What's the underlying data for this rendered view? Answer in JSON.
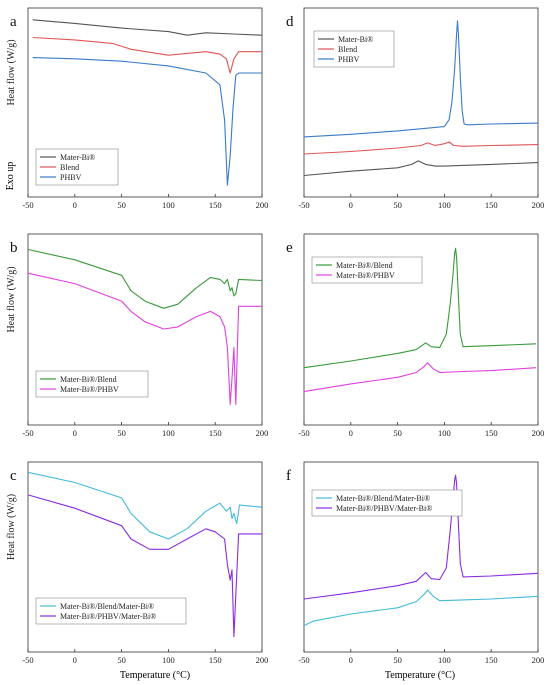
{
  "figure": {
    "xlabel_bottom_left": "Temperature (°C)",
    "xlabel_bottom_right": "Temperature (°C)",
    "exo_label": "Exo up"
  },
  "chart_data": [
    {
      "panel": "a",
      "type": "line",
      "ylabel": "Heat flow (W/g)",
      "xlim": [
        -50,
        200
      ],
      "xticks": [
        -50,
        0,
        50,
        100,
        150,
        200
      ],
      "yticks_shown": false,
      "legend_position": "bottom-left",
      "series": [
        {
          "name": "Mater-Bi®",
          "color": "#555555",
          "x": [
            -45,
            0,
            50,
            100,
            120,
            140,
            170,
            200
          ],
          "y": [
            0.95,
            0.92,
            0.88,
            0.85,
            0.82,
            0.84,
            0.83,
            0.82
          ]
        },
        {
          "name": "Blend",
          "color": "#e05555",
          "x": [
            -45,
            0,
            40,
            60,
            100,
            140,
            155,
            162,
            166,
            170,
            175,
            200
          ],
          "y": [
            0.8,
            0.78,
            0.75,
            0.7,
            0.65,
            0.68,
            0.66,
            0.62,
            0.5,
            0.62,
            0.68,
            0.68
          ]
        },
        {
          "name": "PHBV",
          "color": "#3a7ac8",
          "x": [
            -45,
            0,
            50,
            100,
            140,
            155,
            160,
            163,
            166,
            169,
            172,
            175,
            200
          ],
          "y": [
            0.63,
            0.62,
            0.6,
            0.56,
            0.5,
            0.4,
            0.1,
            -0.45,
            -0.2,
            0.2,
            0.48,
            0.5,
            0.5
          ]
        }
      ]
    },
    {
      "panel": "b",
      "type": "line",
      "ylabel": "Heat flow (W/g)",
      "xlim": [
        -50,
        200
      ],
      "xticks": [
        -50,
        0,
        50,
        100,
        150,
        200
      ],
      "yticks_shown": false,
      "legend_position": "bottom-left",
      "series": [
        {
          "name": "Mater-Bi®/Blend",
          "color": "#3a9a3a",
          "x": [
            -50,
            0,
            50,
            60,
            75,
            95,
            110,
            130,
            145,
            155,
            160,
            163,
            166,
            168,
            170,
            172,
            175,
            200
          ],
          "y": [
            0.95,
            0.85,
            0.7,
            0.55,
            0.45,
            0.38,
            0.42,
            0.58,
            0.68,
            0.66,
            0.62,
            0.66,
            0.55,
            0.58,
            0.5,
            0.52,
            0.66,
            0.65
          ]
        },
        {
          "name": "Mater-Bi®/PHBV",
          "color": "#e040e0",
          "x": [
            -50,
            0,
            50,
            60,
            75,
            95,
            110,
            130,
            145,
            155,
            160,
            163,
            166,
            168,
            170,
            172,
            175,
            200
          ],
          "y": [
            0.72,
            0.62,
            0.45,
            0.35,
            0.25,
            0.18,
            0.2,
            0.3,
            0.35,
            0.3,
            0.2,
            0.0,
            -0.55,
            -0.3,
            0.0,
            -0.55,
            0.4,
            0.4
          ]
        }
      ]
    },
    {
      "panel": "c",
      "type": "line",
      "ylabel": "Heat flow (W/g)",
      "xlim": [
        -50,
        200
      ],
      "xticks": [
        -50,
        0,
        50,
        100,
        150,
        200
      ],
      "yticks_shown": false,
      "legend_position": "bottom-left",
      "series": [
        {
          "name": "Mater-Bi®/Blend/Mater-Bi®",
          "color": "#44bbd8",
          "x": [
            -50,
            0,
            50,
            60,
            80,
            100,
            120,
            140,
            155,
            162,
            166,
            168,
            170,
            173,
            176,
            200
          ],
          "y": [
            1.0,
            0.9,
            0.75,
            0.6,
            0.42,
            0.35,
            0.45,
            0.62,
            0.7,
            0.62,
            0.66,
            0.55,
            0.6,
            0.5,
            0.68,
            0.66
          ]
        },
        {
          "name": "Mater-Bi®/PHBV/Mater-Bi®",
          "color": "#8a2be2",
          "x": [
            -50,
            0,
            50,
            60,
            80,
            100,
            120,
            140,
            150,
            160,
            163,
            166,
            168,
            170,
            172,
            175,
            200
          ],
          "y": [
            0.78,
            0.65,
            0.48,
            0.35,
            0.25,
            0.25,
            0.35,
            0.45,
            0.42,
            0.35,
            0.1,
            -0.05,
            0.05,
            -0.6,
            -0.2,
            0.4,
            0.4
          ]
        }
      ]
    },
    {
      "panel": "d",
      "type": "line",
      "ylabel": "",
      "xlim": [
        -50,
        200
      ],
      "xticks": [
        -50,
        0,
        50,
        100,
        150,
        200
      ],
      "yticks_shown": false,
      "legend_position": "top-left",
      "series": [
        {
          "name": "Mater-Bi®",
          "color": "#555555",
          "x": [
            -50,
            0,
            50,
            65,
            72,
            80,
            90,
            100,
            150,
            200
          ],
          "y": [
            -0.35,
            -0.3,
            -0.26,
            -0.22,
            -0.18,
            -0.22,
            -0.24,
            -0.24,
            -0.22,
            -0.2
          ]
        },
        {
          "name": "Blend",
          "color": "#e05555",
          "x": [
            -50,
            0,
            50,
            75,
            82,
            90,
            100,
            105,
            110,
            120,
            150,
            200
          ],
          "y": [
            -0.1,
            -0.07,
            -0.03,
            0.0,
            0.03,
            0.0,
            0.02,
            0.04,
            0.0,
            -0.01,
            0.0,
            0.01
          ]
        },
        {
          "name": "PHBV",
          "color": "#3a7ac8",
          "x": [
            -50,
            0,
            50,
            100,
            105,
            108,
            111,
            113,
            114,
            115,
            117,
            119,
            121,
            125,
            150,
            200
          ],
          "y": [
            0.1,
            0.13,
            0.17,
            0.22,
            0.3,
            0.5,
            0.9,
            1.3,
            1.45,
            1.3,
            0.8,
            0.4,
            0.25,
            0.24,
            0.25,
            0.26
          ]
        }
      ]
    },
    {
      "panel": "e",
      "type": "line",
      "ylabel": "",
      "xlim": [
        -50,
        200
      ],
      "xticks": [
        -50,
        0,
        50,
        100,
        150,
        200
      ],
      "yticks_shown": false,
      "legend_position": "top-left",
      "series": [
        {
          "name": "Mater-Bi®/Blend",
          "color": "#3a9a3a",
          "x": [
            -50,
            0,
            50,
            70,
            77,
            80,
            86,
            95,
            102,
            106,
            109,
            111,
            112,
            113,
            115,
            117,
            120,
            150,
            198
          ],
          "y": [
            0.05,
            0.12,
            0.2,
            0.24,
            0.29,
            0.31,
            0.27,
            0.26,
            0.4,
            0.7,
            1.0,
            1.25,
            1.3,
            1.2,
            0.8,
            0.4,
            0.27,
            0.28,
            0.3
          ]
        },
        {
          "name": "Mater-Bi®/PHBV",
          "color": "#e040e0",
          "x": [
            -50,
            0,
            50,
            70,
            78,
            82,
            88,
            95,
            120,
            150,
            198
          ],
          "y": [
            -0.2,
            -0.12,
            -0.05,
            0.0,
            0.06,
            0.1,
            0.04,
            0.0,
            0.01,
            0.02,
            0.05
          ]
        }
      ]
    },
    {
      "panel": "f",
      "type": "line",
      "ylabel": "",
      "xlim": [
        -50,
        200
      ],
      "xticks": [
        -50,
        0,
        50,
        100,
        150,
        200
      ],
      "yticks_shown": false,
      "legend_position": "top-left",
      "series": [
        {
          "name": "Mater-Bi®/Blend/Mater-Bi®",
          "color": "#44bbd8",
          "x": [
            -50,
            -40,
            0,
            50,
            70,
            78,
            82,
            88,
            95,
            120,
            150,
            200
          ],
          "y": [
            -0.25,
            -0.2,
            -0.12,
            -0.05,
            0.02,
            0.1,
            0.15,
            0.08,
            0.03,
            0.04,
            0.05,
            0.08
          ]
        },
        {
          "name": "Mater-Bi®/PHBV/Mater-Bi®",
          "color": "#8a2be2",
          "x": [
            -50,
            0,
            50,
            70,
            77,
            80,
            86,
            95,
            102,
            106,
            109,
            111,
            112,
            113,
            115,
            117,
            120,
            150,
            200
          ],
          "y": [
            0.05,
            0.12,
            0.2,
            0.25,
            0.32,
            0.35,
            0.28,
            0.27,
            0.4,
            0.8,
            1.15,
            1.4,
            1.45,
            1.35,
            0.9,
            0.45,
            0.3,
            0.31,
            0.34
          ]
        }
      ]
    }
  ]
}
